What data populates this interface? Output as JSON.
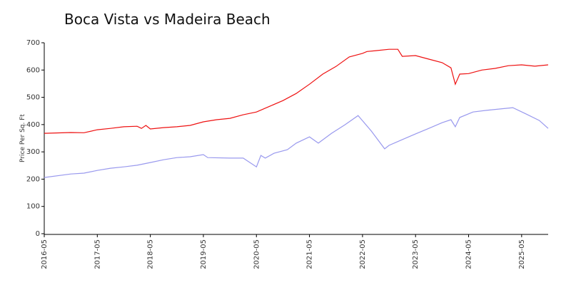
{
  "chart_data": {
    "type": "line",
    "title": "Boca Vista vs Madeira Beach",
    "ylabel": "Price Per Sq. Ft",
    "xlim": [
      "2016-05",
      "2025-11"
    ],
    "xticks": [
      "2016-05",
      "2017-05",
      "2018-05",
      "2019-05",
      "2020-05",
      "2021-05",
      "2022-05",
      "2023-05",
      "2024-05",
      "2025-05"
    ],
    "ylim": [
      0,
      700
    ],
    "yticks": [
      0,
      100,
      200,
      300,
      400,
      500,
      600,
      700
    ],
    "grid": false,
    "series": [
      {
        "color": "#ee1111",
        "x": [
          "2016-05",
          "2016-11",
          "2017-02",
          "2017-05",
          "2017-08",
          "2017-11",
          "2018-02",
          "2018-03",
          "2018-04",
          "2018-05",
          "2018-08",
          "2018-11",
          "2019-02",
          "2019-05",
          "2019-08",
          "2019-11",
          "2020-02",
          "2020-05",
          "2020-08",
          "2020-11",
          "2021-02",
          "2021-05",
          "2021-08",
          "2021-11",
          "2022-02",
          "2022-05",
          "2022-06",
          "2022-08",
          "2022-11",
          "2023-01",
          "2023-02",
          "2023-05",
          "2023-08",
          "2023-11",
          "2024-01",
          "2024-02",
          "2024-03",
          "2024-05",
          "2024-08",
          "2024-11",
          "2025-02",
          "2025-05",
          "2025-08",
          "2025-11"
        ],
        "values": [
          368,
          371,
          370,
          381,
          386,
          392,
          394,
          386,
          397,
          384,
          389,
          392,
          397,
          410,
          418,
          423,
          436,
          446,
          467,
          488,
          514,
          548,
          585,
          613,
          648,
          661,
          668,
          671,
          676,
          676,
          650,
          653,
          640,
          627,
          608,
          548,
          585,
          587,
          600,
          606,
          616,
          619,
          614,
          619
        ]
      },
      {
        "color": "#9999ee",
        "x": [
          "2016-05",
          "2016-11",
          "2017-02",
          "2017-05",
          "2017-08",
          "2017-11",
          "2018-02",
          "2018-05",
          "2018-08",
          "2018-11",
          "2019-02",
          "2019-05",
          "2019-06",
          "2019-11",
          "2020-02",
          "2020-05",
          "2020-06",
          "2020-07",
          "2020-09",
          "2020-12",
          "2021-02",
          "2021-05",
          "2021-07",
          "2021-10",
          "2022-01",
          "2022-04",
          "2022-07",
          "2022-10",
          "2022-11",
          "2023-02",
          "2023-05",
          "2023-08",
          "2023-11",
          "2024-01",
          "2024-02",
          "2024-03",
          "2024-06",
          "2024-09",
          "2024-12",
          "2025-03",
          "2025-06",
          "2025-09",
          "2025-11"
        ],
        "values": [
          206,
          219,
          222,
          232,
          240,
          245,
          251,
          261,
          271,
          279,
          282,
          290,
          279,
          277,
          277,
          245,
          287,
          277,
          295,
          308,
          332,
          355,
          332,
          368,
          399,
          433,
          376,
          311,
          324,
          345,
          366,
          386,
          407,
          418,
          392,
          426,
          446,
          452,
          457,
          462,
          439,
          415,
          386
        ]
      }
    ]
  }
}
